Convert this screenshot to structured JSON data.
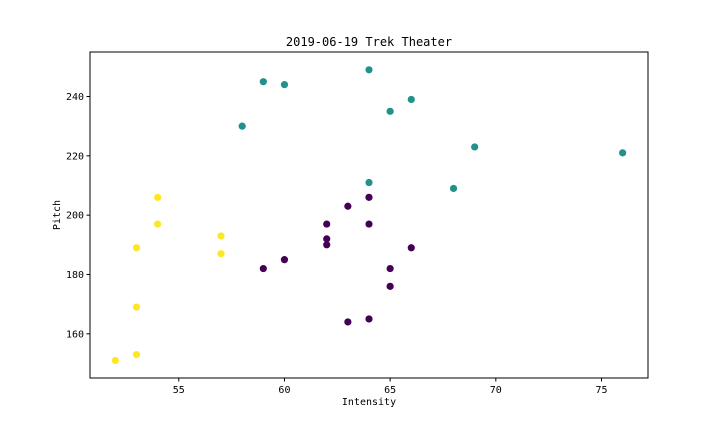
{
  "chart_data": {
    "type": "scatter",
    "title": "2019-06-19 Trek Theater",
    "xlabel": "Intensity",
    "ylabel": "Pitch",
    "xlim": [
      50.8,
      77.2
    ],
    "ylim": [
      145.1,
      255.0
    ],
    "xticks": [
      55,
      60,
      65,
      70,
      75
    ],
    "yticks": [
      160,
      180,
      200,
      220,
      240
    ],
    "grid": false,
    "legend": "none",
    "colors": [
      "#440154",
      "#21918c",
      "#fde725"
    ],
    "series": [
      {
        "color": "#440154",
        "x": [
          59,
          60,
          62,
          62,
          62,
          63,
          63,
          64,
          64,
          64,
          65,
          65,
          66
        ],
        "y": [
          182,
          185,
          197,
          192,
          190,
          203,
          164,
          206,
          197,
          165,
          182,
          176,
          189
        ]
      },
      {
        "color": "#21918c",
        "x": [
          58,
          59,
          60,
          64,
          64,
          65,
          66,
          68,
          69,
          76
        ],
        "y": [
          230,
          245,
          244,
          249,
          211,
          235,
          239,
          209,
          223,
          221
        ]
      },
      {
        "color": "#fde725",
        "x": [
          52,
          53,
          53,
          53,
          54,
          54,
          57,
          57
        ],
        "y": [
          151,
          153,
          169,
          189,
          206,
          197,
          193,
          187
        ]
      }
    ]
  }
}
